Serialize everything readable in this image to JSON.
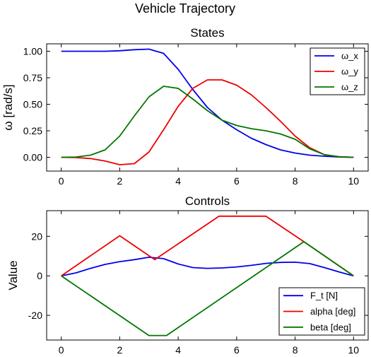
{
  "figure": {
    "title": "Vehicle Trajectory"
  },
  "chart_data": [
    {
      "type": "line",
      "title": "States",
      "xlabel": "",
      "ylabel": "ω [rad/s]",
      "xlim": [
        -0.5,
        10.5
      ],
      "ylim": [
        -0.13,
        1.07
      ],
      "xticks": [
        0,
        2,
        4,
        6,
        8,
        10
      ],
      "xtick_labels": [
        "0",
        "2",
        "4",
        "6",
        "8",
        "10"
      ],
      "yticks": [
        0.0,
        0.25,
        0.5,
        0.75,
        1.0
      ],
      "ytick_labels": [
        "0.00",
        "0.25",
        "0.50",
        "0.75",
        "1.00"
      ],
      "grid": false,
      "legend_position": "top-right",
      "x": [
        0,
        0.5,
        1,
        1.5,
        2,
        2.5,
        3,
        3.5,
        4,
        4.5,
        5,
        5.5,
        6,
        6.5,
        7,
        7.5,
        8,
        8.5,
        9,
        9.5,
        10
      ],
      "series": [
        {
          "name": "ω_x",
          "color": "#0000ee",
          "values": [
            1.0,
            1.0,
            1.0,
            1.0,
            1.005,
            1.015,
            1.02,
            0.98,
            0.83,
            0.64,
            0.47,
            0.35,
            0.26,
            0.18,
            0.12,
            0.07,
            0.04,
            0.02,
            0.01,
            0.003,
            0.0
          ]
        },
        {
          "name": "ω_y",
          "color": "#ee0000",
          "values": [
            0.0,
            -0.002,
            -0.012,
            -0.035,
            -0.07,
            -0.06,
            0.05,
            0.26,
            0.48,
            0.65,
            0.73,
            0.73,
            0.68,
            0.59,
            0.47,
            0.34,
            0.2,
            0.09,
            0.025,
            0.005,
            0.0
          ]
        },
        {
          "name": "ω_z",
          "color": "#007700",
          "values": [
            0.0,
            0.003,
            0.02,
            0.07,
            0.2,
            0.39,
            0.57,
            0.67,
            0.65,
            0.55,
            0.44,
            0.35,
            0.3,
            0.27,
            0.25,
            0.22,
            0.17,
            0.08,
            0.025,
            0.006,
            0.0
          ]
        }
      ]
    },
    {
      "type": "line",
      "title": "Controls",
      "xlabel": "",
      "ylabel": "Value",
      "xlim": [
        -0.5,
        10.5
      ],
      "ylim": [
        -32.5,
        33
      ],
      "xticks": [
        0,
        2,
        4,
        6,
        8,
        10
      ],
      "xtick_labels": [
        "0",
        "2",
        "4",
        "6",
        "8",
        "10"
      ],
      "yticks": [
        -20,
        0,
        20
      ],
      "ytick_labels": [
        "-20",
        "0",
        "20"
      ],
      "grid": false,
      "legend_position": "bottom-right",
      "series": [
        {
          "name": "F_t [N]",
          "color": "#0000ee",
          "x": [
            0,
            0.5,
            1,
            1.5,
            2,
            2.5,
            3,
            3.5,
            4,
            4.5,
            5,
            5.5,
            6,
            6.5,
            7,
            7.5,
            8,
            8.5,
            9,
            9.5,
            10
          ],
          "values": [
            0,
            1.5,
            3.8,
            5.8,
            7.2,
            8.2,
            9.4,
            8.7,
            6.0,
            4.2,
            3.8,
            4.0,
            4.5,
            5.3,
            6.3,
            6.8,
            6.9,
            6.2,
            4.2,
            2.0,
            0
          ]
        },
        {
          "name": "alpha [deg]",
          "color": "#ee0000",
          "x": [
            0,
            2,
            3.2,
            5.4,
            7.0,
            8.3,
            10
          ],
          "values": [
            0,
            20.3,
            8.2,
            30.2,
            30.2,
            17.3,
            0
          ]
        },
        {
          "name": "beta [deg]",
          "color": "#007700",
          "x": [
            0,
            3.0,
            3.6,
            8.3,
            10
          ],
          "values": [
            0,
            -30.2,
            -30.2,
            17.3,
            0
          ]
        }
      ]
    }
  ]
}
